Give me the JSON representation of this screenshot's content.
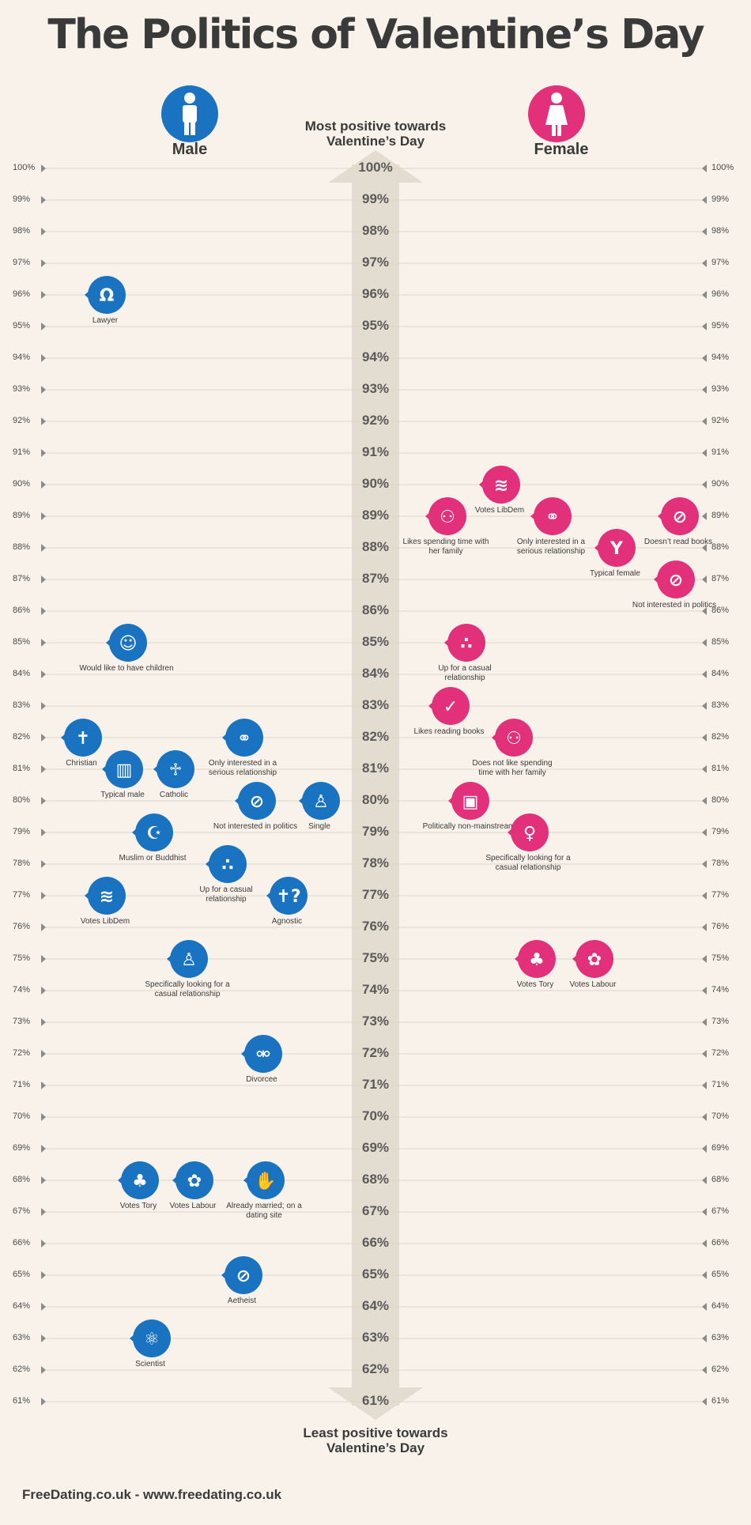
{
  "title": "The Politics of Valentine’s Day",
  "colors": {
    "male": "#1a73c0",
    "female": "#e3307b",
    "arrow": "#e2ddd0",
    "background": "#f8f2ea"
  },
  "male_label": "Male",
  "female_label": "Female",
  "top_caption_1": "Most positive towards",
  "top_caption_2": "Valentine’s Day",
  "bottom_caption_1": "Least positive towards",
  "bottom_caption_2": "Valentine’s Day",
  "footer": "FreeDating.co.uk - www.freedating.co.uk",
  "scale": {
    "max": 100,
    "min": 61,
    "unit": "%"
  },
  "chart_data": {
    "type": "scatter",
    "title": "The Politics of Valentine’s Day",
    "ylim": [
      61,
      100
    ],
    "series": [
      {
        "name": "Male",
        "points": [
          {
            "label": "Lawyer",
            "value": 96,
            "icon": "wig-icon"
          },
          {
            "label": "Would like to have children",
            "value": 85,
            "icon": "baby-icon"
          },
          {
            "label": "Christian",
            "value": 82,
            "icon": "cross-icon"
          },
          {
            "label": "Only interested in a serious relationship",
            "value": 82,
            "icon": "couple-icon"
          },
          {
            "label": "Typical male",
            "value": 81,
            "icon": "beer-icon"
          },
          {
            "label": "Catholic",
            "value": 81,
            "icon": "pope-icon"
          },
          {
            "label": "Not interested in politics",
            "value": 80,
            "icon": "no-politics-icon"
          },
          {
            "label": "Single",
            "value": 80,
            "icon": "person-icon"
          },
          {
            "label": "Muslim or Buddhist",
            "value": 79,
            "icon": "crescent-icon"
          },
          {
            "label": "Up for a casual relationship",
            "value": 78,
            "icon": "footprints-icon"
          },
          {
            "label": "Votes LibDem",
            "value": 77,
            "icon": "libdem-bird-icon"
          },
          {
            "label": "Agnostic",
            "value": 77,
            "icon": "question-cross-icon"
          },
          {
            "label": "Specifically looking for a casual relationship",
            "value": 75,
            "icon": "flexing-man-icon"
          },
          {
            "label": "Divorcee",
            "value": 72,
            "icon": "divorced-couple-icon"
          },
          {
            "label": "Votes Tory",
            "value": 68,
            "icon": "tory-tree-icon"
          },
          {
            "label": "Votes Labour",
            "value": 68,
            "icon": "labour-rose-icon"
          },
          {
            "label": "Already married; on a dating site",
            "value": 68,
            "icon": "hand-stop-icon"
          },
          {
            "label": "Aetheist",
            "value": 65,
            "icon": "no-religion-icon"
          },
          {
            "label": "Scientist",
            "value": 63,
            "icon": "atom-icon"
          }
        ]
      },
      {
        "name": "Female",
        "points": [
          {
            "label": "Votes LibDem",
            "value": 90,
            "icon": "libdem-bird-icon"
          },
          {
            "label": "Likes spending time with her family",
            "value": 89,
            "icon": "family-icon"
          },
          {
            "label": "Only interested in a serious relationship",
            "value": 89,
            "icon": "couple-icon"
          },
          {
            "label": "Doesn’t read books",
            "value": 89,
            "icon": "no-books-icon"
          },
          {
            "label": "Typical female",
            "value": 88,
            "icon": "cocktail-icon"
          },
          {
            "label": "Not interested in politics",
            "value": 87,
            "icon": "no-politics-icon"
          },
          {
            "label": "Up for a casual relationship",
            "value": 85,
            "icon": "footprints-icon"
          },
          {
            "label": "Likes reading books",
            "value": 83,
            "icon": "book-tick-icon"
          },
          {
            "label": "Does not like spending time with her family",
            "value": 82,
            "icon": "family-icon"
          },
          {
            "label": "Politically non-mainstream",
            "value": 80,
            "icon": "ballot-icon"
          },
          {
            "label": "Specifically looking for a casual relationship",
            "value": 79,
            "icon": "woman-pose-icon"
          },
          {
            "label": "Votes Tory",
            "value": 75,
            "icon": "tory-tree-icon"
          },
          {
            "label": "Votes Labour",
            "value": 75,
            "icon": "labour-rose-icon"
          }
        ]
      }
    ]
  }
}
